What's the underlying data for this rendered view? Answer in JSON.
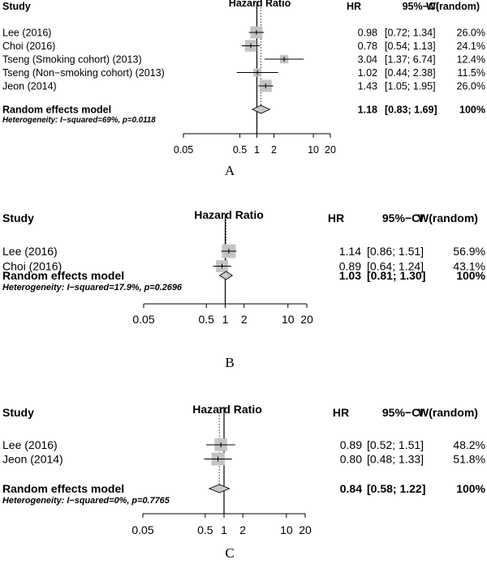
{
  "colors": {
    "box": "#c4c4c4",
    "diamond": "#c8c8c8",
    "line": "#000000"
  },
  "chart_data": [
    {
      "type": "forest",
      "panel_label": "A",
      "headers": {
        "study": "Study",
        "axis_title": "Hazard Ratio",
        "hr": "HR",
        "ci": "95%−CI",
        "weight": "W(random)"
      },
      "x_scale": "log",
      "xlim": [
        0.05,
        20
      ],
      "ticks": [
        0.05,
        0.5,
        1,
        2,
        10,
        20
      ],
      "tick_labels": [
        "0.05",
        "0.5",
        "1",
        "2",
        "10",
        "20"
      ],
      "studies": [
        {
          "label": "Lee (2016)",
          "hr": 0.98,
          "lower": 0.72,
          "upper": 1.34,
          "hr_text": "0.98",
          "ci_text": "[0.72; 1.34]",
          "w": 26.0,
          "w_text": "26.0%"
        },
        {
          "label": "Choi (2016)",
          "hr": 0.78,
          "lower": 0.54,
          "upper": 1.13,
          "hr_text": "0.78",
          "ci_text": "[0.54; 1.13]",
          "w": 24.1,
          "w_text": "24.1%"
        },
        {
          "label": "Tseng (Smoking cohort) (2013)",
          "hr": 3.04,
          "lower": 1.37,
          "upper": 6.74,
          "hr_text": "3.04",
          "ci_text": "[1.37; 6.74]",
          "w": 12.4,
          "w_text": "12.4%"
        },
        {
          "label": "Tseng (Non−smoking cohort) (2013)",
          "hr": 1.02,
          "lower": 0.44,
          "upper": 2.38,
          "hr_text": "1.02",
          "ci_text": "[0.44; 2.38]",
          "w": 11.5,
          "w_text": "11.5%"
        },
        {
          "label": "Jeon (2014)",
          "hr": 1.43,
          "lower": 1.05,
          "upper": 1.95,
          "hr_text": "1.43",
          "ci_text": "[1.05; 1.95]",
          "w": 26.0,
          "w_text": "26.0%"
        }
      ],
      "summary": {
        "label": "Random effects model",
        "hr": 1.18,
        "lower": 0.83,
        "upper": 1.69,
        "hr_text": "1.18",
        "ci_text": "[0.83; 1.69]",
        "w_text": "100%"
      },
      "heterogeneity": "Heterogeneity: I−squared=69%, p=0.0118"
    },
    {
      "type": "forest",
      "panel_label": "B",
      "headers": {
        "study": "Study",
        "axis_title": "Hazard Ratio",
        "hr": "HR",
        "ci": "95%−CI",
        "weight": "W(random)"
      },
      "x_scale": "log",
      "xlim": [
        0.05,
        20
      ],
      "ticks": [
        0.05,
        0.5,
        1,
        2,
        10,
        20
      ],
      "tick_labels": [
        "0.05",
        "0.5",
        "1",
        "2",
        "10",
        "20"
      ],
      "studies": [
        {
          "label": "Lee (2016)",
          "hr": 1.14,
          "lower": 0.86,
          "upper": 1.51,
          "hr_text": "1.14",
          "ci_text": "[0.86; 1.51]",
          "w": 56.9,
          "w_text": "56.9%"
        },
        {
          "label": "Choi (2016)",
          "hr": 0.89,
          "lower": 0.64,
          "upper": 1.24,
          "hr_text": "0.89",
          "ci_text": "[0.64; 1.24]",
          "w": 43.1,
          "w_text": "43.1%"
        }
      ],
      "summary": {
        "label": "Random effects model",
        "hr": 1.03,
        "lower": 0.81,
        "upper": 1.3,
        "hr_text": "1.03",
        "ci_text": "[0.81; 1.30]",
        "w_text": "100%"
      },
      "heterogeneity": "Heterogeneity: I−squared=17.9%, p=0.2696"
    },
    {
      "type": "forest",
      "panel_label": "C",
      "headers": {
        "study": "Study",
        "axis_title": "Hazard Ratio",
        "hr": "HR",
        "ci": "95%−CI",
        "weight": "W(random)"
      },
      "x_scale": "log",
      "xlim": [
        0.05,
        20
      ],
      "ticks": [
        0.05,
        0.5,
        1,
        2,
        10,
        20
      ],
      "tick_labels": [
        "0.05",
        "0.5",
        "1",
        "2",
        "10",
        "20"
      ],
      "studies": [
        {
          "label": "Lee (2016)",
          "hr": 0.89,
          "lower": 0.52,
          "upper": 1.51,
          "hr_text": "0.89",
          "ci_text": "[0.52; 1.51]",
          "w": 48.2,
          "w_text": "48.2%"
        },
        {
          "label": "Jeon (2014)",
          "hr": 0.8,
          "lower": 0.48,
          "upper": 1.33,
          "hr_text": "0.80",
          "ci_text": "[0.48; 1.33]",
          "w": 51.8,
          "w_text": "51.8%"
        }
      ],
      "summary": {
        "label": "Random effects model",
        "hr": 0.84,
        "lower": 0.58,
        "upper": 1.22,
        "hr_text": "0.84",
        "ci_text": "[0.58; 1.22]",
        "w_text": "100%"
      },
      "heterogeneity": "Heterogeneity: I−squared=0%, p=0.7765"
    }
  ]
}
